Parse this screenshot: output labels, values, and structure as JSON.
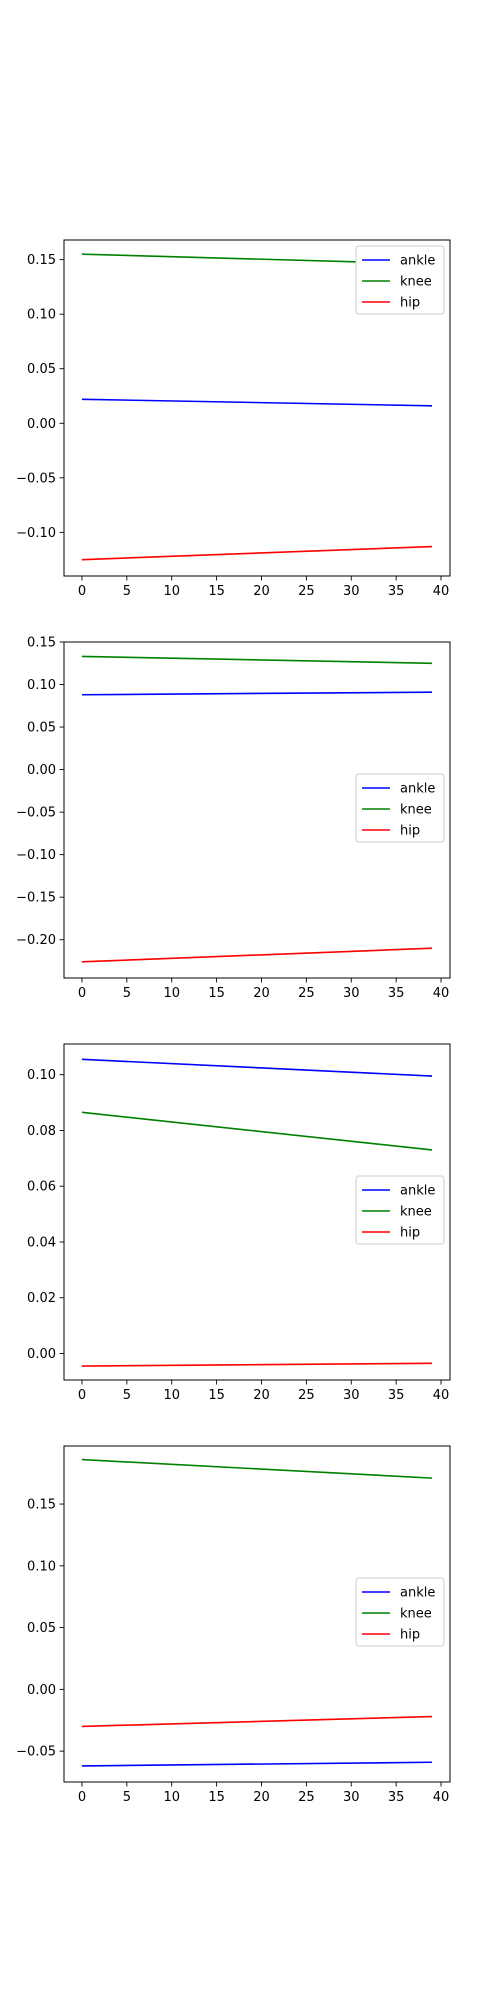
{
  "colors": {
    "ankle": "#0000ff",
    "knee": "#008000",
    "hip": "#ff0000"
  },
  "chart_data": [
    {
      "type": "line",
      "x": [
        0,
        39
      ],
      "xlim": [
        -2,
        41
      ],
      "xticks": [
        0,
        5,
        10,
        15,
        20,
        25,
        30,
        35,
        40
      ],
      "ylim": [
        -0.14,
        0.168
      ],
      "yticks": [
        -0.1,
        -0.05,
        0.0,
        0.05,
        0.1,
        0.15
      ],
      "ytick_labels": [
        "−0.10",
        "−0.05",
        "0.00",
        "0.05",
        "0.10",
        "0.15"
      ],
      "legend_position": "upper right",
      "grid": false,
      "series": [
        {
          "name": "ankle",
          "color": "#0000ff",
          "values": [
            0.022,
            0.016
          ]
        },
        {
          "name": "knee",
          "color": "#008000",
          "values": [
            0.155,
            0.146
          ]
        },
        {
          "name": "hip",
          "color": "#ff0000",
          "values": [
            -0.125,
            -0.113
          ]
        }
      ]
    },
    {
      "type": "line",
      "x": [
        0,
        39
      ],
      "xlim": [
        -2,
        41
      ],
      "xticks": [
        0,
        5,
        10,
        15,
        20,
        25,
        30,
        35,
        40
      ],
      "ylim": [
        -0.245,
        0.15
      ],
      "yticks": [
        -0.2,
        -0.15,
        -0.1,
        -0.05,
        0.0,
        0.05,
        0.1,
        0.15
      ],
      "ytick_labels": [
        "−0.20",
        "−0.15",
        "−0.10",
        "−0.05",
        "0.00",
        "0.05",
        "0.10",
        "0.15"
      ],
      "legend_position": "center right",
      "grid": false,
      "series": [
        {
          "name": "ankle",
          "color": "#0000ff",
          "values": [
            0.088,
            0.091
          ]
        },
        {
          "name": "knee",
          "color": "#008000",
          "values": [
            0.133,
            0.125
          ]
        },
        {
          "name": "hip",
          "color": "#ff0000",
          "values": [
            -0.226,
            -0.21
          ]
        }
      ]
    },
    {
      "type": "line",
      "x": [
        0,
        39
      ],
      "xlim": [
        -2,
        41
      ],
      "xticks": [
        0,
        5,
        10,
        15,
        20,
        25,
        30,
        35,
        40
      ],
      "ylim": [
        -0.0095,
        0.111
      ],
      "yticks": [
        0.0,
        0.02,
        0.04,
        0.06,
        0.08,
        0.1
      ],
      "ytick_labels": [
        "0.00",
        "0.02",
        "0.04",
        "0.06",
        "0.08",
        "0.10"
      ],
      "legend_position": "center right",
      "grid": false,
      "series": [
        {
          "name": "ankle",
          "color": "#0000ff",
          "values": [
            0.1055,
            0.0995
          ]
        },
        {
          "name": "knee",
          "color": "#008000",
          "values": [
            0.0865,
            0.073
          ]
        },
        {
          "name": "hip",
          "color": "#ff0000",
          "values": [
            -0.0045,
            -0.0035
          ]
        }
      ]
    },
    {
      "type": "line",
      "x": [
        0,
        39
      ],
      "xlim": [
        -2,
        41
      ],
      "xticks": [
        0,
        5,
        10,
        15,
        20,
        25,
        30,
        35,
        40
      ],
      "ylim": [
        -0.075,
        0.197
      ],
      "yticks": [
        -0.05,
        0.0,
        0.05,
        0.1,
        0.15
      ],
      "ytick_labels": [
        "−0.05",
        "0.00",
        "0.05",
        "0.10",
        "0.15"
      ],
      "legend_position": "center right",
      "grid": false,
      "series": [
        {
          "name": "ankle",
          "color": "#0000ff",
          "values": [
            -0.062,
            -0.059
          ]
        },
        {
          "name": "knee",
          "color": "#008000",
          "values": [
            0.186,
            0.171
          ]
        },
        {
          "name": "hip",
          "color": "#ff0000",
          "values": [
            -0.03,
            -0.022
          ]
        }
      ]
    }
  ]
}
